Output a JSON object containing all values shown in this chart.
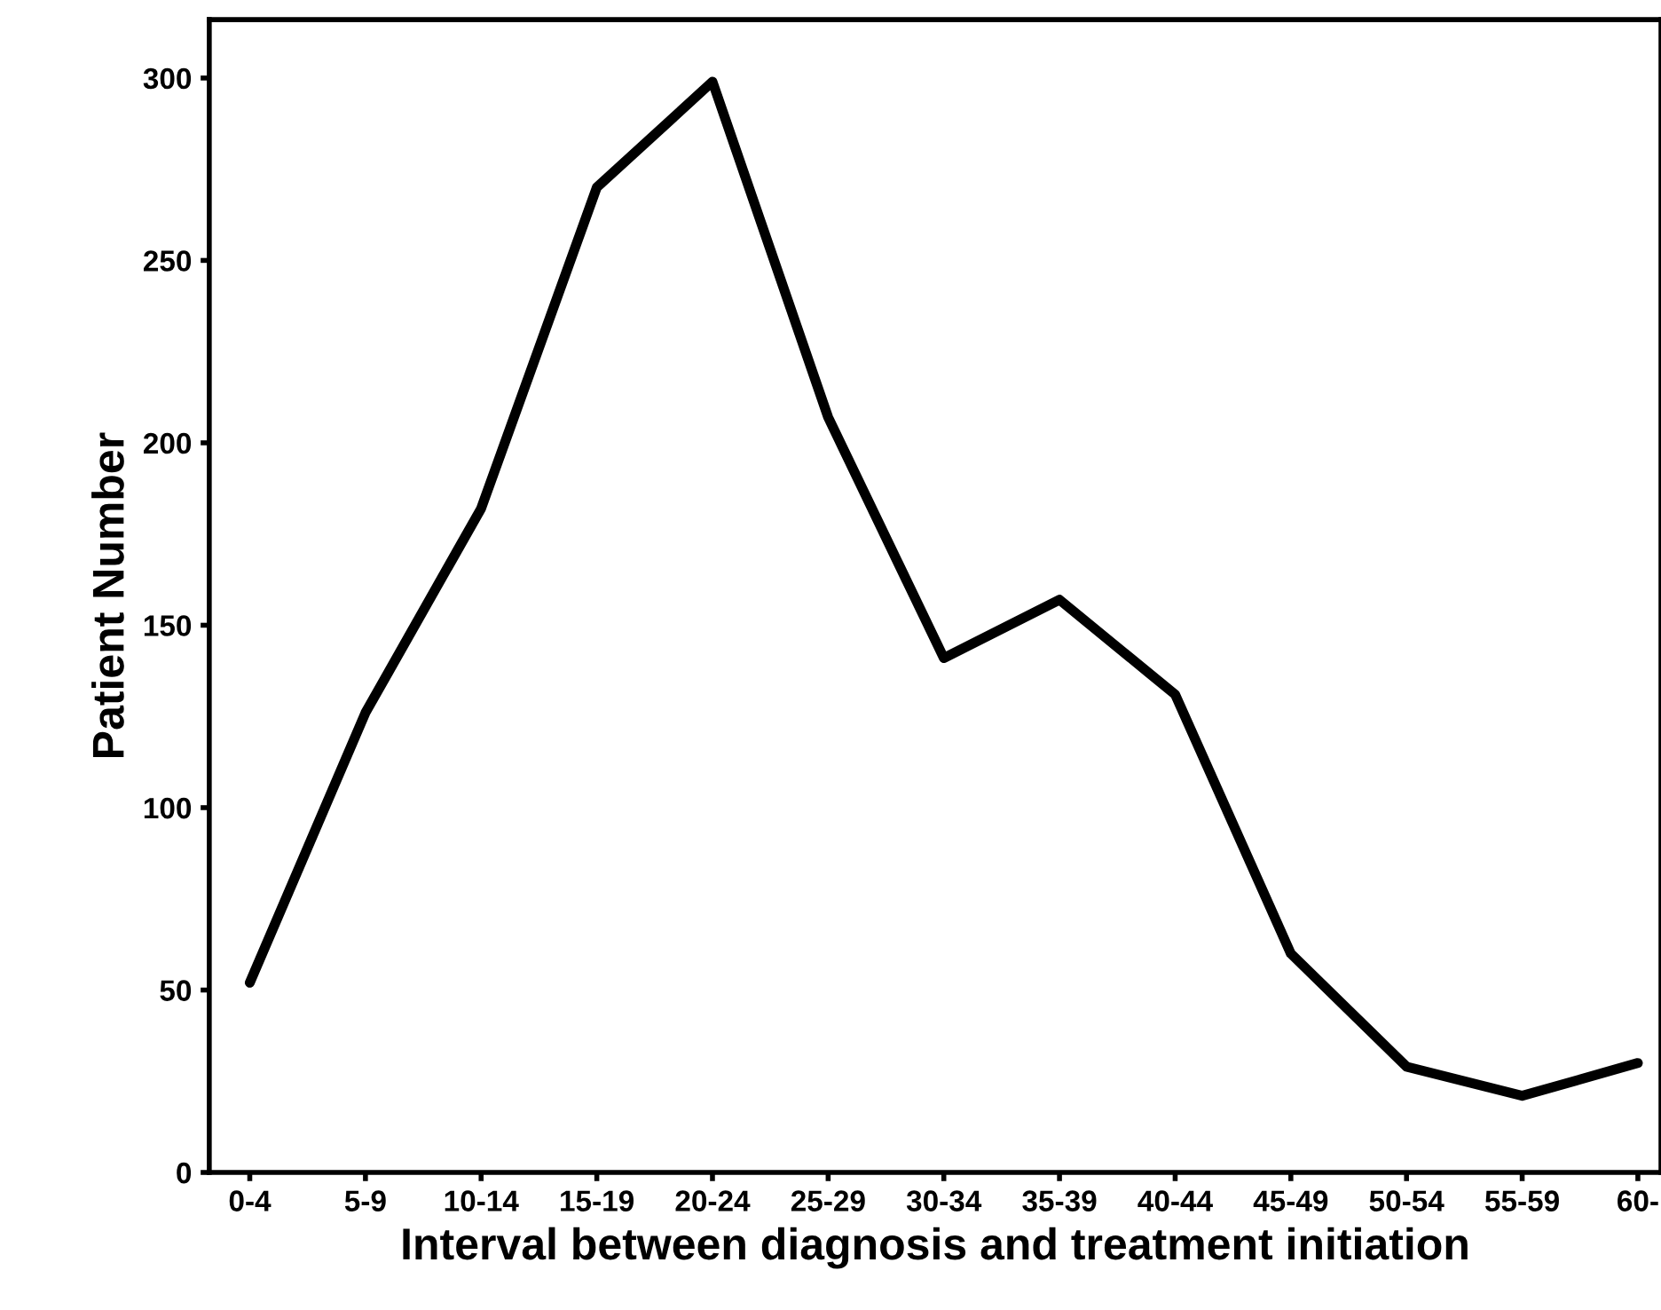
{
  "chart_data": {
    "type": "line",
    "xlabel": "Interval between diagnosis and treatment initiation",
    "ylabel": "Patient Number",
    "categories": [
      "0-4",
      "5-9",
      "10-14",
      "15-19",
      "20-24",
      "25-29",
      "30-34",
      "35-39",
      "40-44",
      "45-49",
      "50-54",
      "55-59",
      "60-"
    ],
    "series": [
      {
        "color": "#000000",
        "values": [
          52,
          126,
          182,
          270,
          299,
          207,
          141,
          157,
          131,
          60,
          29,
          21,
          30
        ]
      }
    ],
    "ylim": [
      0,
      316
    ],
    "yticks": [
      0,
      50,
      100,
      150,
      200,
      250,
      300
    ],
    "grid": false,
    "marker": "none",
    "line_style": "solid"
  }
}
